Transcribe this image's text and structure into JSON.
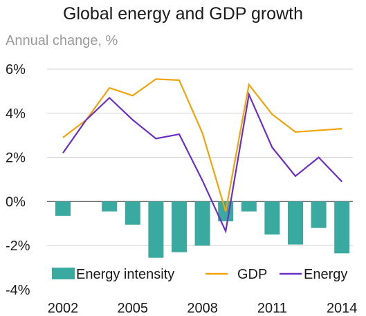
{
  "chart_data": {
    "type": "bar",
    "title": "Global energy and GDP growth",
    "subtitle": "Annual change, %",
    "xlabel": "",
    "ylabel": "",
    "x": [
      2002,
      2003,
      2004,
      2005,
      2006,
      2007,
      2008,
      2009,
      2010,
      2011,
      2012,
      2013,
      2014
    ],
    "xtick_labels": [
      "2002",
      "2005",
      "2008",
      "2011",
      "2014"
    ],
    "xtick_values": [
      2002,
      2005,
      2008,
      2011,
      2014
    ],
    "ylim": [
      -4,
      6
    ],
    "yticks": [
      {
        "value": 6,
        "label": "6%"
      },
      {
        "value": 4,
        "label": "4%"
      },
      {
        "value": 2,
        "label": "2%"
      },
      {
        "value": 0,
        "label": "0%"
      },
      {
        "value": -2,
        "label": "-2%"
      },
      {
        "value": -4,
        "label": "-4%"
      }
    ],
    "grid": true,
    "legend_position": "bottom",
    "series": [
      {
        "name": "Energy intensity",
        "kind": "bar",
        "color": "#3aa99f",
        "values": [
          -0.65,
          0.0,
          -0.45,
          -1.05,
          -2.55,
          -2.3,
          -2.0,
          -0.9,
          -0.45,
          -1.5,
          -1.95,
          -1.2,
          -2.35
        ]
      },
      {
        "name": "GDP",
        "kind": "line",
        "color": "#f0a30a",
        "values": [
          2.9,
          3.7,
          5.15,
          4.8,
          5.55,
          5.5,
          3.1,
          -0.45,
          5.3,
          3.95,
          3.15,
          null,
          3.3
        ]
      },
      {
        "name": "Energy",
        "kind": "line",
        "color": "#6a2fc4",
        "values": [
          2.2,
          3.7,
          4.7,
          3.7,
          2.85,
          3.05,
          0.95,
          -1.35,
          4.85,
          2.45,
          1.15,
          2.0,
          0.9
        ]
      }
    ]
  }
}
